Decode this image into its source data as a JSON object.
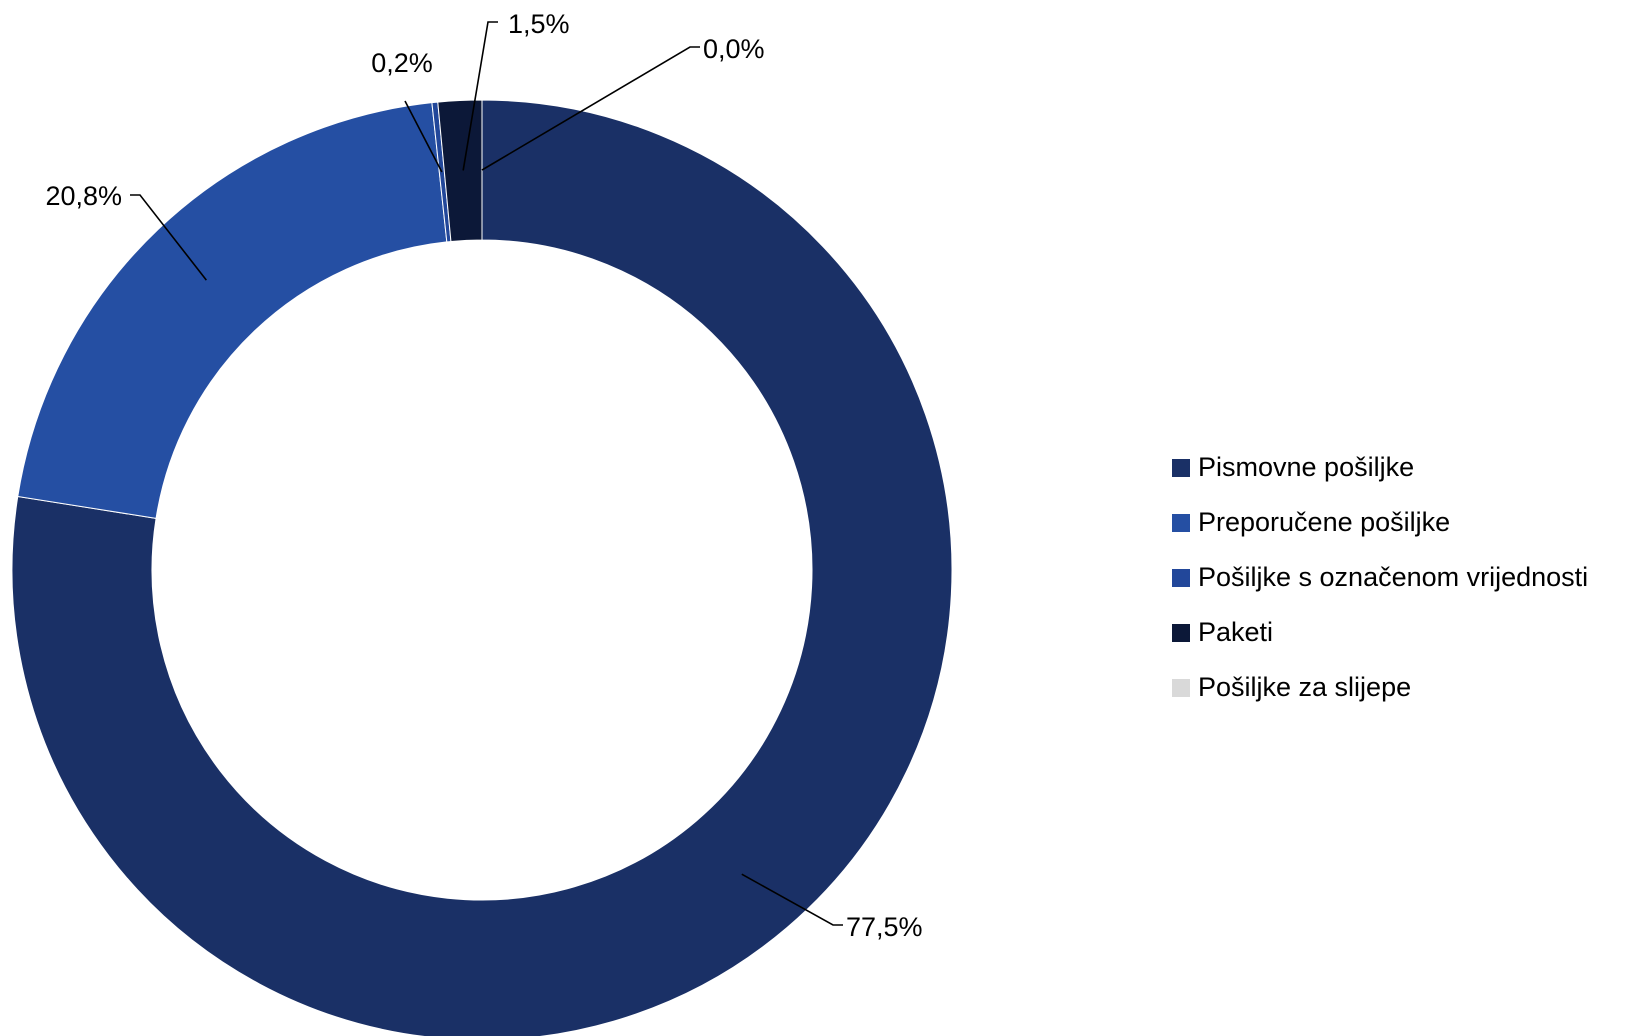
{
  "chart_data": {
    "type": "pie",
    "variant": "doughnut",
    "categories": [
      "Pismovne pošiljke",
      "Preporučene pošiljke",
      "Pošiljke s označenom vrijednosti",
      "Paketi",
      "Pošiljke za slijepe"
    ],
    "values": [
      77.5,
      20.8,
      0.2,
      1.5,
      0.0
    ],
    "value_labels": [
      "77,5%",
      "20,8%",
      "0,2%",
      "1,5%",
      "0,0%"
    ],
    "colors": [
      "#1a3066",
      "#254fa3",
      "#22479a",
      "#0c1838",
      "#d9d9d9"
    ],
    "legend_position": "right",
    "unit": "%"
  }
}
